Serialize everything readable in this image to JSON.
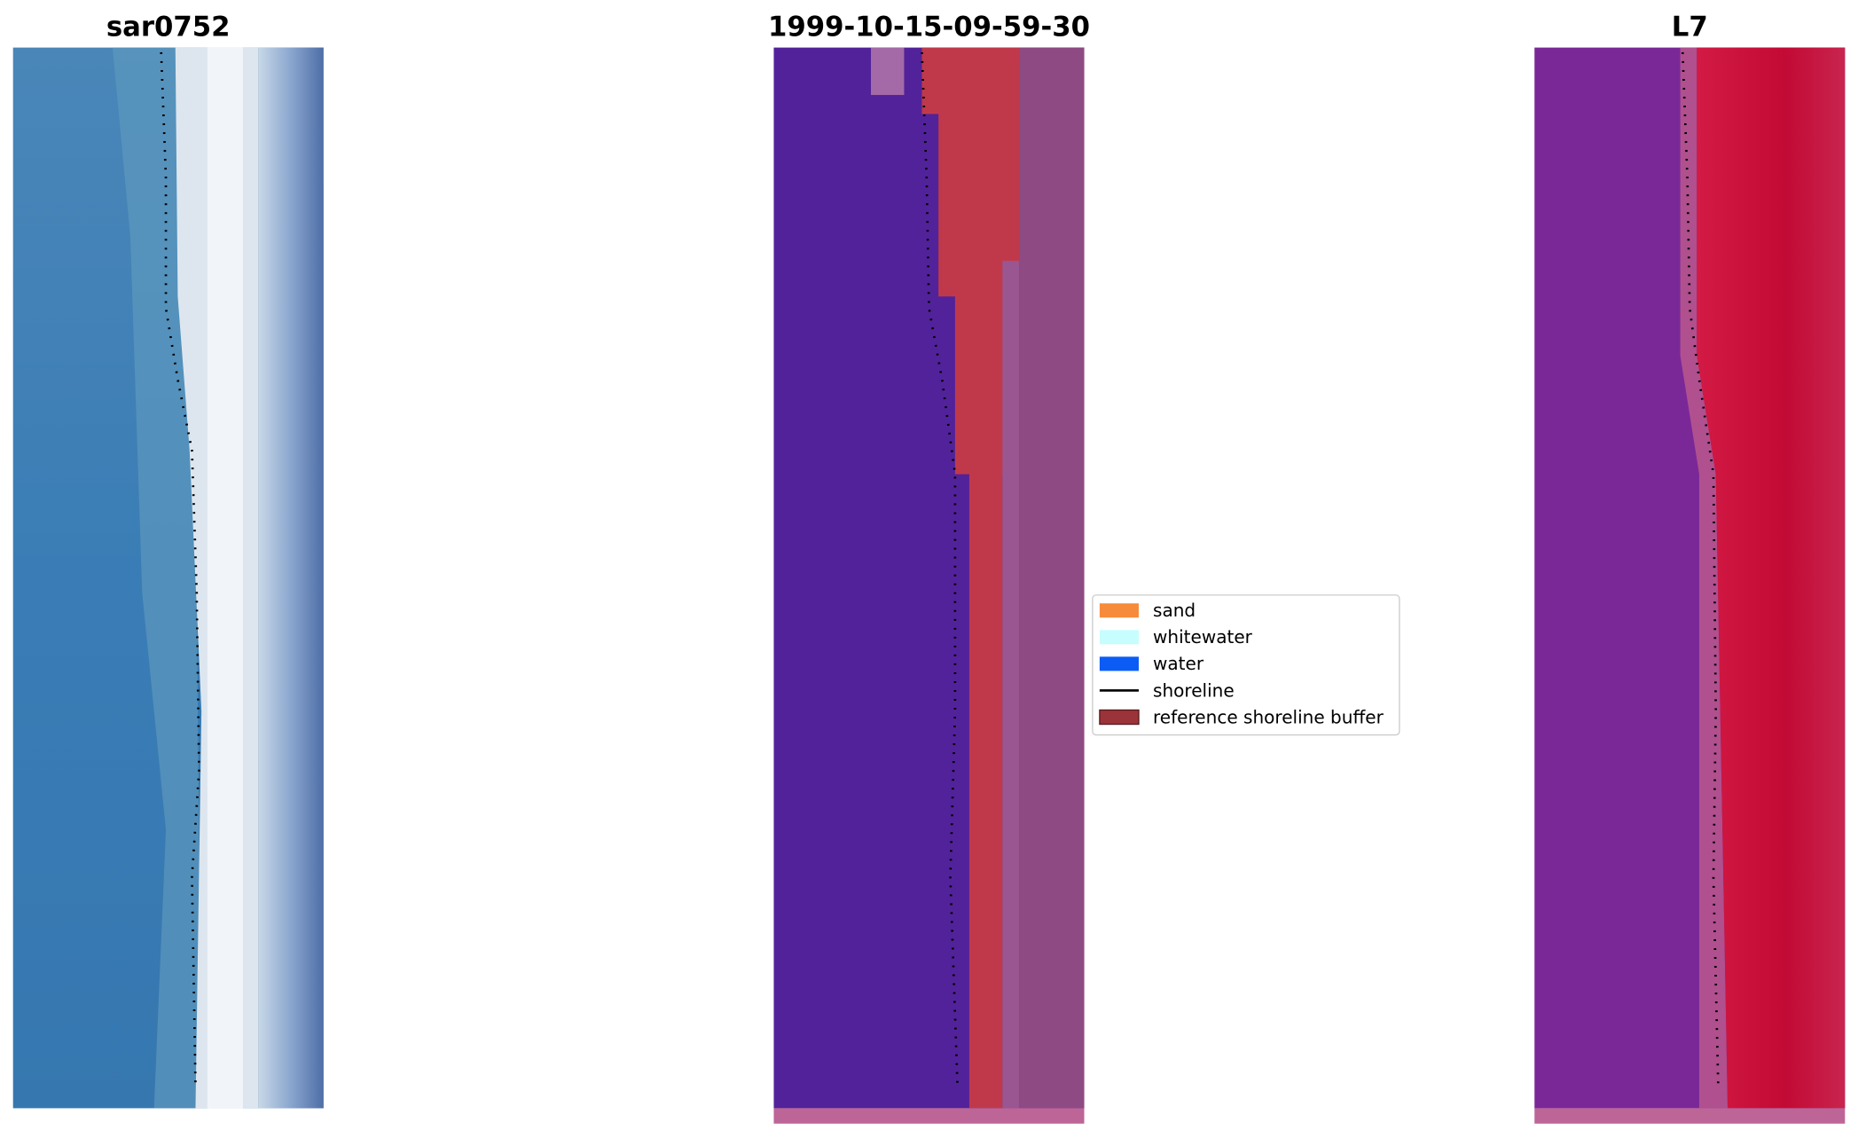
{
  "panels": [
    {
      "title": "sar0752"
    },
    {
      "title": "1999-10-15-09-59-30"
    },
    {
      "title": "L7"
    }
  ],
  "legend": {
    "items": [
      {
        "label": "sand",
        "kind": "patch",
        "color": "#f78b3c"
      },
      {
        "label": "whitewater",
        "kind": "patch",
        "color": "#c8fdfd"
      },
      {
        "label": "water",
        "kind": "patch",
        "color": "#0b5cf4"
      },
      {
        "label": "shoreline",
        "kind": "line",
        "color": "#000000"
      },
      {
        "label": "reference shoreline buffer",
        "kind": "patch",
        "color": "#9b343a"
      }
    ]
  }
}
